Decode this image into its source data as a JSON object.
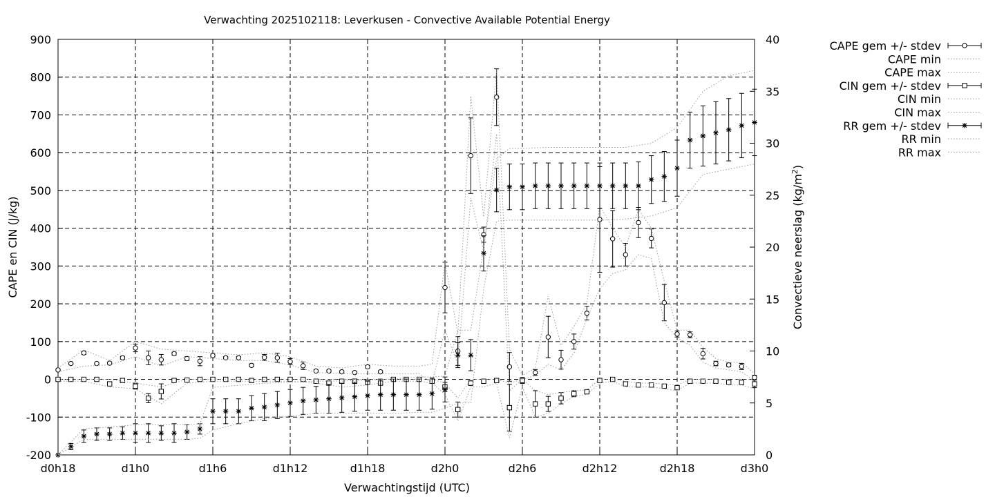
{
  "chart_data": {
    "type": "line",
    "title": "Verwachting 2025102118: Leverkusen - Convective Available Potential Energy",
    "xlabel": "Verwachtingstijd (UTC)",
    "ylabel": "CAPE en CIN (J/kg)",
    "y2label": "Convectieve neerslag (kg/m²)",
    "xlim": [
      18,
      72
    ],
    "ylim": [
      -200,
      900
    ],
    "y2lim": [
      0,
      40
    ],
    "grid": true,
    "legend_position": "outside-right",
    "x_ticks": [
      {
        "x": 18,
        "label": "d0h18"
      },
      {
        "x": 24,
        "label": "d1h0"
      },
      {
        "x": 30,
        "label": "d1h6"
      },
      {
        "x": 36,
        "label": "d1h12"
      },
      {
        "x": 42,
        "label": "d1h18"
      },
      {
        "x": 48,
        "label": "d2h0"
      },
      {
        "x": 54,
        "label": "d2h6"
      },
      {
        "x": 60,
        "label": "d2h12"
      },
      {
        "x": 66,
        "label": "d2h18"
      },
      {
        "x": 72,
        "label": "d3h0"
      }
    ],
    "y_ticks": [
      -200,
      -100,
      0,
      100,
      200,
      300,
      400,
      500,
      600,
      700,
      800,
      900
    ],
    "y2_ticks": [
      0,
      5,
      10,
      15,
      20,
      25,
      30,
      35,
      40
    ],
    "legend": [
      "CAPE gem +/- stdev",
      "CAPE min",
      "CAPE max",
      "CIN gem +/- stdev",
      "CIN min",
      "CIN max",
      "RR gem +/- stdev",
      "RR min",
      "RR max"
    ],
    "series": [
      {
        "name": "CAPE gem +/- stdev",
        "axis": "y",
        "marker": "circle",
        "x": [
          18,
          19,
          20,
          21,
          22,
          23,
          24,
          25,
          26,
          27,
          28,
          29,
          30,
          31,
          32,
          33,
          34,
          35,
          36,
          37,
          38,
          39,
          40,
          41,
          42,
          43,
          44,
          45,
          46,
          47,
          48,
          49,
          50,
          51,
          52,
          53,
          54,
          55,
          56,
          57,
          58,
          59,
          60,
          61,
          62,
          63,
          64,
          65,
          66,
          67,
          68,
          69,
          70,
          71,
          72
        ],
        "values": [
          25,
          42,
          70,
          42,
          43,
          57,
          83,
          57,
          52,
          68,
          55,
          48,
          63,
          57,
          57,
          37,
          58,
          57,
          47,
          36,
          22,
          22,
          20,
          18,
          33,
          20,
          null,
          null,
          null,
          null,
          243,
          75,
          592,
          383,
          747,
          33,
          null,
          18,
          112,
          52,
          100,
          175,
          423,
          372,
          330,
          415,
          373,
          203,
          120,
          118,
          68,
          42,
          38,
          34,
          5
        ],
        "stdev": [
          3,
          3,
          4,
          3,
          3,
          4,
          10,
          18,
          14,
          4,
          5,
          12,
          4,
          3,
          3,
          4,
          8,
          12,
          8,
          10,
          3,
          3,
          3,
          3,
          3,
          3,
          null,
          null,
          null,
          null,
          67,
          38,
          100,
          20,
          75,
          38,
          null,
          8,
          55,
          25,
          20,
          18,
          140,
          75,
          30,
          40,
          25,
          48,
          8,
          8,
          14,
          6,
          5,
          8,
          6
        ]
      },
      {
        "name": "CAPE min",
        "axis": "y",
        "line": "dotted",
        "x": [
          18,
          20,
          22,
          24,
          26,
          28,
          30,
          32,
          34,
          36,
          38,
          40,
          42,
          44,
          46,
          47,
          48,
          49,
          50,
          51,
          52,
          53,
          54,
          55,
          56,
          57,
          58,
          59,
          60,
          61,
          62,
          63,
          64,
          65,
          66,
          67,
          68,
          69,
          70,
          71,
          72
        ],
        "values": [
          20,
          35,
          38,
          60,
          35,
          60,
          55,
          50,
          50,
          38,
          18,
          15,
          15,
          15,
          15,
          -10,
          130,
          40,
          480,
          340,
          650,
          -30,
          0,
          10,
          40,
          25,
          70,
          160,
          240,
          280,
          290,
          330,
          320,
          150,
          110,
          90,
          45,
          30,
          25,
          20,
          -5
        ]
      },
      {
        "name": "CAPE max",
        "axis": "y",
        "line": "dotted",
        "x": [
          18,
          20,
          22,
          24,
          26,
          28,
          30,
          32,
          34,
          36,
          38,
          40,
          42,
          44,
          46,
          47,
          48,
          49,
          50,
          51,
          52,
          53,
          54,
          55,
          56,
          57,
          58,
          59,
          60,
          61,
          62,
          63,
          64,
          65,
          66,
          67,
          68,
          69,
          70,
          71,
          72
        ],
        "values": [
          30,
          78,
          50,
          100,
          80,
          75,
          70,
          65,
          70,
          60,
          35,
          30,
          40,
          35,
          35,
          40,
          310,
          120,
          750,
          430,
          820,
          80,
          10,
          30,
          220,
          90,
          140,
          200,
          460,
          400,
          350,
          450,
          400,
          260,
          130,
          130,
          85,
          55,
          45,
          45,
          15
        ]
      },
      {
        "name": "CIN gem +/- stdev",
        "axis": "y",
        "marker": "square",
        "x": [
          18,
          19,
          20,
          21,
          22,
          23,
          24,
          25,
          26,
          27,
          28,
          29,
          30,
          31,
          32,
          33,
          34,
          35,
          36,
          37,
          38,
          39,
          40,
          41,
          42,
          43,
          44,
          45,
          46,
          47,
          48,
          49,
          50,
          51,
          52,
          53,
          54,
          55,
          56,
          57,
          58,
          59,
          60,
          61,
          62,
          63,
          64,
          65,
          66,
          67,
          68,
          69,
          70,
          71,
          72
        ],
        "values": [
          0,
          0,
          0,
          0,
          -12,
          -3,
          -18,
          -50,
          -32,
          -3,
          -2,
          0,
          0,
          0,
          0,
          -3,
          0,
          0,
          0,
          0,
          -5,
          -10,
          -5,
          -5,
          -8,
          -10,
          0,
          0,
          0,
          -5,
          -20,
          -80,
          -10,
          -5,
          -3,
          -75,
          -3,
          -65,
          -65,
          -50,
          -38,
          -33,
          -3,
          0,
          -12,
          -15,
          -15,
          -18,
          -22,
          -5,
          -5,
          -5,
          -8,
          -8,
          -12
        ],
        "stdev": [
          2,
          2,
          2,
          2,
          4,
          2,
          8,
          12,
          20,
          2,
          2,
          2,
          2,
          2,
          2,
          3,
          2,
          2,
          2,
          2,
          3,
          5,
          5,
          6,
          6,
          4,
          2,
          2,
          2,
          4,
          12,
          20,
          6,
          4,
          2,
          62,
          8,
          35,
          20,
          15,
          8,
          4,
          2,
          2,
          3,
          3,
          3,
          3,
          4,
          3,
          3,
          3,
          3,
          3,
          10
        ]
      },
      {
        "name": "CIN min",
        "axis": "y",
        "line": "dotted",
        "x": [
          18,
          20,
          22,
          24,
          26,
          28,
          30,
          32,
          34,
          36,
          38,
          40,
          42,
          44,
          46,
          47,
          48,
          49,
          50,
          51,
          52,
          53,
          54,
          55,
          56,
          57,
          58,
          59,
          60,
          61,
          62,
          63,
          64,
          65,
          66,
          67,
          68,
          69,
          70,
          71,
          72
        ],
        "values": [
          -5,
          -5,
          -20,
          -25,
          -65,
          -10,
          -5,
          -5,
          -5,
          -5,
          -10,
          -20,
          -15,
          -5,
          -5,
          -10,
          -40,
          -110,
          -20,
          -20,
          -10,
          -155,
          -20,
          -100,
          -90,
          -65,
          -45,
          -40,
          -10,
          -5,
          -20,
          -20,
          -20,
          -25,
          -30,
          -10,
          -10,
          -10,
          -15,
          -15,
          -25
        ]
      },
      {
        "name": "CIN max",
        "axis": "y",
        "line": "dotted",
        "x": [
          18,
          20,
          22,
          24,
          26,
          28,
          30,
          32,
          34,
          36,
          38,
          40,
          42,
          44,
          46,
          47,
          48,
          49,
          50,
          51,
          52,
          53,
          54,
          55,
          56,
          57,
          58,
          59,
          60,
          61,
          62,
          63,
          64,
          65,
          66,
          67,
          68,
          69,
          70,
          71,
          72
        ],
        "values": [
          0,
          0,
          0,
          -10,
          -20,
          0,
          0,
          0,
          0,
          0,
          0,
          0,
          0,
          0,
          0,
          0,
          -10,
          -50,
          0,
          0,
          0,
          -10,
          0,
          -30,
          -40,
          -35,
          -30,
          -28,
          0,
          0,
          -5,
          -10,
          -10,
          -12,
          -15,
          0,
          0,
          0,
          0,
          0,
          0
        ]
      },
      {
        "name": "RR gem +/- stdev",
        "axis": "y2",
        "marker": "star",
        "x": [
          18,
          19,
          20,
          21,
          22,
          23,
          24,
          25,
          26,
          27,
          28,
          29,
          30,
          31,
          32,
          33,
          34,
          35,
          36,
          37,
          38,
          39,
          40,
          41,
          42,
          43,
          44,
          45,
          46,
          47,
          48,
          49,
          50,
          51,
          52,
          53,
          54,
          55,
          56,
          57,
          58,
          59,
          60,
          61,
          62,
          63,
          64,
          65,
          66,
          67,
          68,
          69,
          70,
          71,
          72
        ],
        "values": [
          0,
          0.8,
          1.8,
          2,
          2,
          2.1,
          2.1,
          2.1,
          2.1,
          2.1,
          2.2,
          2.5,
          4.2,
          4.2,
          4.2,
          4.5,
          4.6,
          4.8,
          5,
          5.2,
          5.3,
          5.4,
          5.5,
          5.6,
          5.7,
          5.8,
          5.8,
          5.8,
          5.8,
          5.9,
          6.3,
          9.6,
          9.6,
          19.4,
          25.5,
          25.8,
          25.8,
          25.9,
          25.9,
          25.9,
          25.9,
          25.9,
          25.9,
          25.9,
          25.9,
          25.9,
          26.5,
          26.8,
          27.6,
          30.3,
          30.7,
          31,
          31.3,
          31.7,
          32
        ],
        "stdev": [
          0,
          0.3,
          0.6,
          0.6,
          0.6,
          0.6,
          0.9,
          0.9,
          0.7,
          0.9,
          0.7,
          0.5,
          1.2,
          1.2,
          1.2,
          1.2,
          1.3,
          1.3,
          1.3,
          1.3,
          1.3,
          1.4,
          1.4,
          1.4,
          1.4,
          1.5,
          1.5,
          1.5,
          1.5,
          1.5,
          1.2,
          1.2,
          1.5,
          1.7,
          2.1,
          2.2,
          2.2,
          2.2,
          2.2,
          2.2,
          2.2,
          2.2,
          2.2,
          2.2,
          2.2,
          2.3,
          2.3,
          2.4,
          2.7,
          2.7,
          2.9,
          3,
          3,
          3.1,
          3.2
        ]
      },
      {
        "name": "RR min",
        "axis": "y2",
        "line": "dotted",
        "x": [
          18,
          20,
          22,
          24,
          26,
          28,
          29,
          30,
          32,
          34,
          36,
          38,
          40,
          42,
          44,
          46,
          47,
          48,
          49,
          50,
          51,
          52,
          53,
          54,
          56,
          58,
          60,
          62,
          64,
          66,
          68,
          70,
          72
        ],
        "values": [
          0,
          1.5,
          1.5,
          1.5,
          1.5,
          1.5,
          1.6,
          2.4,
          3,
          3.5,
          3.7,
          4,
          4,
          4,
          4,
          4.1,
          4.1,
          4.5,
          5,
          5,
          16,
          22.5,
          22.6,
          22.6,
          22.6,
          22.6,
          22.6,
          22.7,
          23,
          23.8,
          27,
          27.5,
          28
        ]
      },
      {
        "name": "RR max",
        "axis": "y2",
        "line": "dotted",
        "x": [
          18,
          20,
          22,
          24,
          26,
          28,
          29,
          30,
          32,
          34,
          36,
          38,
          40,
          42,
          44,
          46,
          47,
          48,
          49,
          50,
          51,
          52,
          53,
          54,
          56,
          58,
          60,
          62,
          64,
          66,
          68,
          70,
          72
        ],
        "values": [
          0,
          2.5,
          2.7,
          2.9,
          2.9,
          2.9,
          3,
          6.5,
          6.7,
          6.9,
          7,
          7.1,
          7.1,
          7.2,
          7.3,
          7.5,
          7.5,
          7.6,
          12,
          12,
          20,
          28.5,
          29.5,
          29.5,
          29.6,
          29.6,
          29.6,
          29.6,
          30,
          31.5,
          35,
          36.5,
          37
        ]
      }
    ]
  }
}
